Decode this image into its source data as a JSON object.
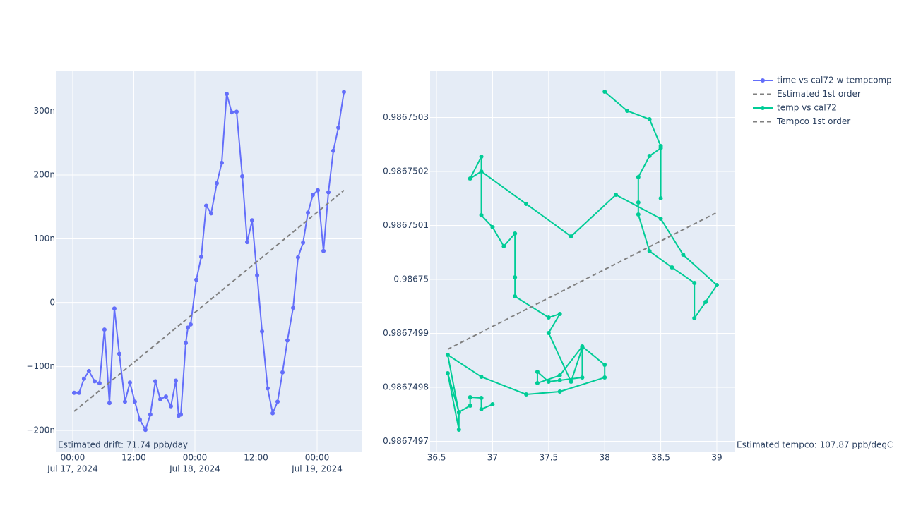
{
  "chart_data": [
    {
      "type": "line",
      "xtype": "date",
      "annotation": "Estimated drift:  71.74 ppb/day",
      "grid": true,
      "legend": "right",
      "xlim": [
        "2024-07-16 20:49",
        "2024-07-19 08:44"
      ],
      "xticks": [
        {
          "value": "2024-07-17 00:00",
          "label": "00:00"
        },
        {
          "value": "2024-07-17 12:00",
          "label": "12:00"
        },
        {
          "value": "2024-07-18 00:00",
          "label": "00:00"
        },
        {
          "value": "2024-07-18 12:00",
          "label": "12:00"
        },
        {
          "value": "2024-07-19 00:00",
          "label": "00:00"
        }
      ],
      "date_labels": [
        {
          "value": "2024-07-17 00:00",
          "label": "Jul 17, 2024"
        },
        {
          "value": "2024-07-18 00:00",
          "label": "Jul 18, 2024"
        },
        {
          "value": "2024-07-19 00:00",
          "label": "Jul 19, 2024"
        }
      ],
      "ylim": [
        -2.33e-07,
        3.635e-07
      ],
      "yticks": [
        {
          "value": -2e-07,
          "label": "−200n"
        },
        {
          "value": -1e-07,
          "label": "−100n"
        },
        0,
        {
          "value": 1e-07,
          "label": "100n"
        },
        {
          "value": 2e-07,
          "label": "200n"
        },
        {
          "value": 3e-07,
          "label": "300n"
        }
      ],
      "series": [
        {
          "name": "time vs cal72 w tempcomp",
          "color": "#636efa",
          "markers": true,
          "x": [
            "2024-07-17 00:17",
            "2024-07-17 01:15",
            "2024-07-17 02:13",
            "2024-07-17 03:11",
            "2024-07-17 04:18",
            "2024-07-17 05:16",
            "2024-07-17 06:14",
            "2024-07-17 07:13",
            "2024-07-17 08:11",
            "2024-07-17 09:09",
            "2024-07-17 10:16",
            "2024-07-17 11:14",
            "2024-07-17 12:12",
            "2024-07-17 13:11",
            "2024-07-17 14:17",
            "2024-07-17 15:15",
            "2024-07-17 16:14",
            "2024-07-17 17:12",
            "2024-07-17 18:19",
            "2024-07-17 19:17",
            "2024-07-17 20:15",
            "2024-07-17 20:48",
            "2024-07-17 21:14",
            "2024-07-17 22:12",
            "2024-07-17 22:37",
            "2024-07-17 23:10",
            "2024-07-18 00:17",
            "2024-07-18 01:15",
            "2024-07-18 02:13",
            "2024-07-18 03:11",
            "2024-07-18 04:18",
            "2024-07-18 05:16",
            "2024-07-18 06:14",
            "2024-07-18 07:13",
            "2024-07-18 08:11",
            "2024-07-18 09:18",
            "2024-07-18 10:16",
            "2024-07-18 11:14",
            "2024-07-18 12:13",
            "2024-07-18 13:11",
            "2024-07-18 14:17",
            "2024-07-18 15:16",
            "2024-07-18 16:14",
            "2024-07-18 17:12",
            "2024-07-18 18:10",
            "2024-07-18 19:17",
            "2024-07-18 20:15",
            "2024-07-18 21:14",
            "2024-07-18 22:12",
            "2024-07-18 23:10",
            "2024-07-19 00:08",
            "2024-07-19 01:15",
            "2024-07-19 02:13",
            "2024-07-19 03:11",
            "2024-07-19 04:10",
            "2024-07-19 05:16"
          ],
          "values": [
            -1.41e-07,
            -1.41e-07,
            -1.19e-07,
            -1.07e-07,
            -1.23e-07,
            -1.26e-07,
            -4.2e-08,
            -1.57e-07,
            -9e-09,
            -8e-08,
            -1.55e-07,
            -1.25e-07,
            -1.55e-07,
            -1.83e-07,
            -1.99e-07,
            -1.75e-07,
            -1.23e-07,
            -1.51e-07,
            -1.47e-07,
            -1.62e-07,
            -1.22e-07,
            -1.77e-07,
            -1.75e-07,
            -6.3e-08,
            -3.9e-08,
            -3.4e-08,
            3.6e-08,
            7.2e-08,
            1.52e-07,
            1.4e-07,
            1.87e-07,
            2.19e-07,
            3.27e-07,
            2.98e-07,
            2.99e-07,
            1.98e-07,
            9.5e-08,
            1.29e-07,
            4.3e-08,
            -4.5e-08,
            -1.34e-07,
            -1.73e-07,
            -1.55e-07,
            -1.09e-07,
            -5.9e-08,
            -8e-09,
            7.1e-08,
            9.4e-08,
            1.41e-07,
            1.69e-07,
            1.76e-07,
            8.1e-08,
            1.73e-07,
            2.38e-07,
            2.74e-07,
            3.3e-07
          ]
        },
        {
          "name": "Estimated 1st order",
          "color": "#808080",
          "dash": true,
          "x": [
            "2024-07-17 00:17",
            "2024-07-19 05:16"
          ],
          "values": [
            -1.7e-07,
            1.76e-07
          ]
        }
      ]
    },
    {
      "type": "line",
      "xtype": "linear",
      "annotation": "Estimated tempco:  107.87 ppb/degC",
      "grid": true,
      "xlim": [
        36.443,
        39.164
      ],
      "xticks": [
        36.5,
        37,
        37.5,
        38,
        38.5,
        39
      ],
      "ylim": [
        0.9867496811,
        0.9867503869
      ],
      "yticks": [
        0.9867497,
        0.9867498,
        0.9867499,
        0.98675,
        0.9867501,
        0.9867502,
        0.9867503
      ],
      "series": [
        {
          "name": "temp vs cal72",
          "color": "#00cc96",
          "markers": true,
          "x": [
            37.0,
            36.9,
            36.9,
            36.8,
            36.8,
            36.7,
            36.6,
            36.7,
            36.7,
            36.6,
            36.9,
            37.3,
            37.6,
            38.0,
            38.0,
            37.8,
            37.6,
            37.4,
            37.4,
            37.5,
            37.6,
            37.8,
            37.8,
            37.7,
            37.5,
            37.6,
            37.5,
            37.2,
            37.2,
            37.2,
            37.1,
            37.0,
            36.9,
            36.9,
            36.8,
            36.9,
            37.3,
            37.7,
            38.1,
            38.5,
            38.7,
            39.0,
            38.9,
            38.8,
            38.8,
            38.6,
            38.4,
            38.3,
            38.3,
            38.3,
            38.4,
            38.5,
            38.5,
            38.5,
            38.4,
            38.2,
            38.0
          ],
          "values": [
            0.9867497686,
            0.9867497595,
            0.9867497804,
            0.9867497817,
            0.986749766,
            0.9867497543,
            0.9867498262,
            0.9867497216,
            0.986749753,
            0.9867498602,
            0.9867498196,
            0.986749787,
            0.9867497922,
            0.9867498183,
            0.9867498419,
            0.9867498758,
            0.9867498222,
            0.9867498079,
            0.9867498288,
            0.9867498105,
            0.9867498131,
            0.9867498183,
            0.9867498732,
            0.9867498105,
            0.9867499007,
            0.986749936,
            0.9867499294,
            0.9867499686,
            0.9867500039,
            0.986750085,
            0.9867500614,
            0.9867500967,
            0.9867501189,
            0.9867502274,
            0.9867501869,
            0.9867502,
            0.9867501398,
            0.9867500797,
            0.9867501568,
            0.9867501124,
            0.9867500457,
            0.9867499895,
            0.9867499582,
            0.9867499281,
            0.9867499935,
            0.9867500222,
            0.9867500523,
            0.9867501202,
            0.9867501425,
            0.9867501895,
            0.9867502287,
            0.9867502431,
            0.9867501503,
            0.986750247,
            0.9867502967,
            0.9867503124,
            0.9867503477
          ]
        },
        {
          "name": "Tempco 1st order",
          "color": "#808080",
          "dash": true,
          "x": [
            36.6,
            38.99
          ],
          "values": [
            0.9867498706,
            0.9867501229
          ]
        }
      ]
    }
  ]
}
